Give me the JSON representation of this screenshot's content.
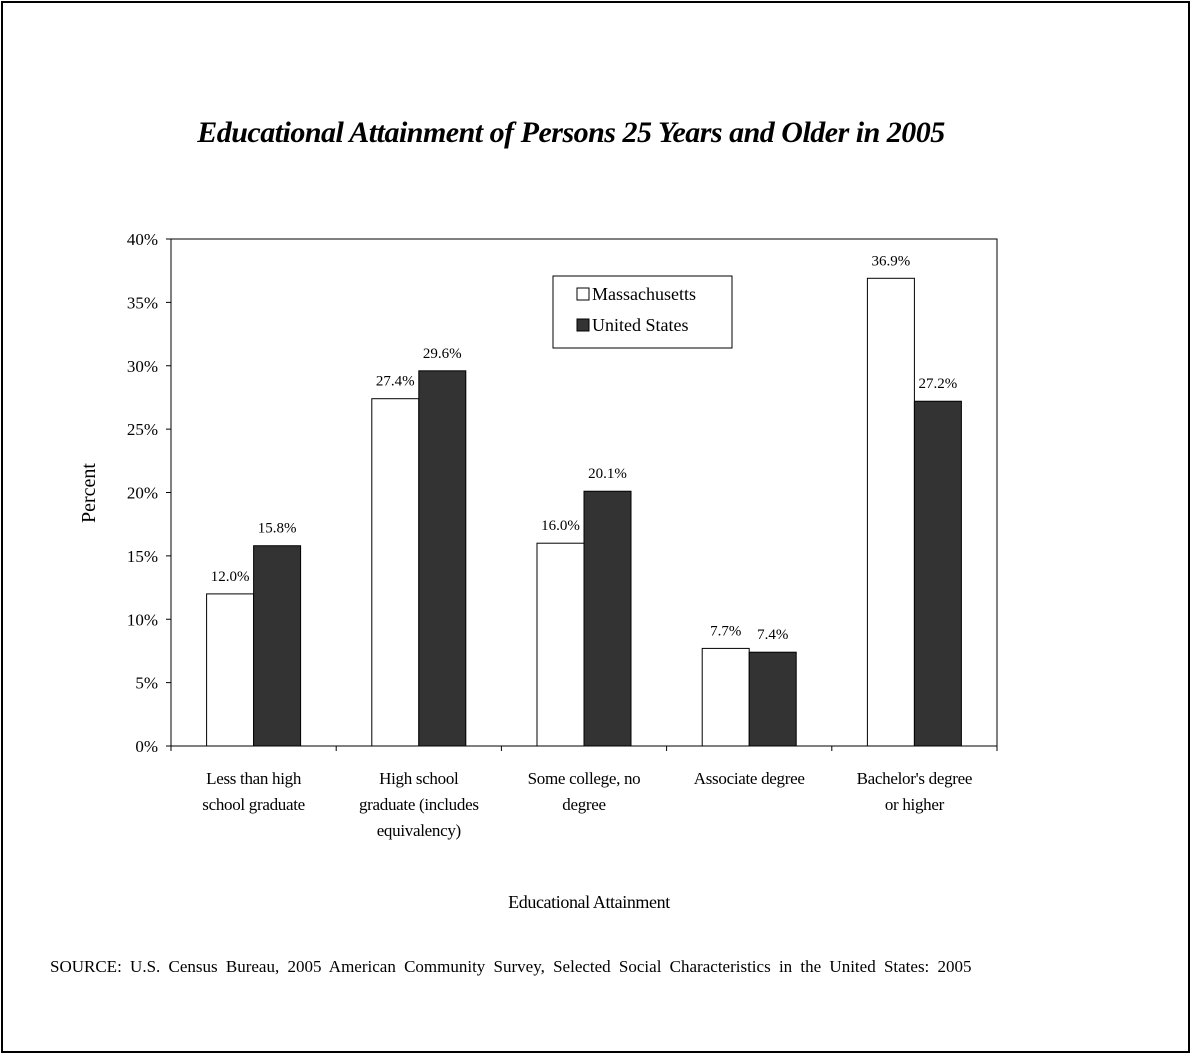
{
  "chart_data": {
    "type": "bar",
    "title": "Educational Attainment of Persons 25 Years and Older in 2005",
    "xlabel": "Educational Attainment",
    "ylabel": "Percent",
    "ylim": [
      0,
      40
    ],
    "yticks": [
      0,
      5,
      10,
      15,
      20,
      25,
      30,
      35,
      40
    ],
    "ytick_labels": [
      "0%",
      "5%",
      "10%",
      "15%",
      "20%",
      "25%",
      "30%",
      "35%",
      "40%"
    ],
    "categories": [
      [
        "Less than high",
        "school graduate"
      ],
      [
        "High school",
        "graduate (includes",
        "equivalency)"
      ],
      [
        "Some college, no",
        "degree"
      ],
      [
        "Associate degree"
      ],
      [
        "Bachelor's degree",
        "or higher"
      ]
    ],
    "series": [
      {
        "name": "Massachusetts",
        "color": "#ffffff",
        "values": [
          12.0,
          27.4,
          16.0,
          7.7,
          36.9
        ],
        "labels": [
          "12.0%",
          "27.4%",
          "16.0%",
          "7.7%",
          "36.9%"
        ]
      },
      {
        "name": "United States",
        "color": "#333333",
        "values": [
          15.8,
          29.6,
          20.1,
          7.4,
          27.2
        ],
        "labels": [
          "15.8%",
          "29.6%",
          "20.1%",
          "7.4%",
          "27.2%"
        ]
      }
    ],
    "grid": false,
    "legend_position": "top-center"
  },
  "source": "SOURCE: U.S. Census Bureau, 2005 American Community Survey, Selected Social Characteristics in the United States: 2005"
}
